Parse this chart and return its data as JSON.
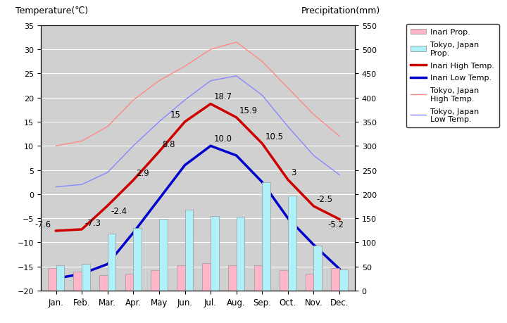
{
  "months": [
    "Jan.",
    "Feb.",
    "Mar.",
    "Apr.",
    "May",
    "Jun.",
    "Jul.",
    "Aug.",
    "Sep.",
    "Oct.",
    "Nov.",
    "Dec."
  ],
  "inari_high_temp": [
    -7.6,
    -7.3,
    -2.4,
    2.9,
    8.8,
    15.0,
    18.7,
    15.9,
    10.5,
    3.0,
    -2.5,
    -5.2
  ],
  "inari_low_temp": [
    -17.5,
    -16.5,
    -14.5,
    -8.0,
    -1.0,
    6.0,
    10.0,
    8.0,
    2.5,
    -5.0,
    -10.5,
    -15.5
  ],
  "tokyo_high_temp": [
    10.0,
    11.0,
    14.0,
    19.5,
    23.5,
    26.5,
    30.0,
    31.5,
    27.5,
    22.0,
    16.5,
    12.0
  ],
  "tokyo_low_temp": [
    1.5,
    2.0,
    4.5,
    10.0,
    15.0,
    19.5,
    23.5,
    24.5,
    20.5,
    14.0,
    8.0,
    4.0
  ],
  "inari_precip_mm": [
    47,
    40,
    32,
    35,
    42,
    52,
    57,
    52,
    52,
    42,
    35,
    47
  ],
  "tokyo_precip_mm": [
    52,
    56,
    118,
    130,
    148,
    168,
    154,
    153,
    225,
    197,
    93,
    44
  ],
  "inari_high_labels": [
    "-7.6",
    "-7.3",
    "-2.4",
    "2.9",
    "8.8",
    "15",
    "18.7",
    "15.9",
    "10.5",
    "3",
    "-2.5",
    "-5.2"
  ],
  "inari_low_label_idx": 6,
  "inari_low_label_val": "10.0",
  "title_left": "Temperature(℃)",
  "title_right": "Precipitation(mm)",
  "temp_ylim": [
    -20,
    35
  ],
  "precip_ylim": [
    0,
    550
  ],
  "bg_color": "#d0d0d0",
  "bar_width": 0.32,
  "inari_bar_color": "#ffb6c8",
  "tokyo_bar_color": "#b0f0f8",
  "inari_high_color": "#cc0000",
  "inari_low_color": "#0000cc",
  "tokyo_high_color": "#ff8888",
  "tokyo_low_color": "#8888ff",
  "grid_color": "#ffffff",
  "font_size": 8.5
}
